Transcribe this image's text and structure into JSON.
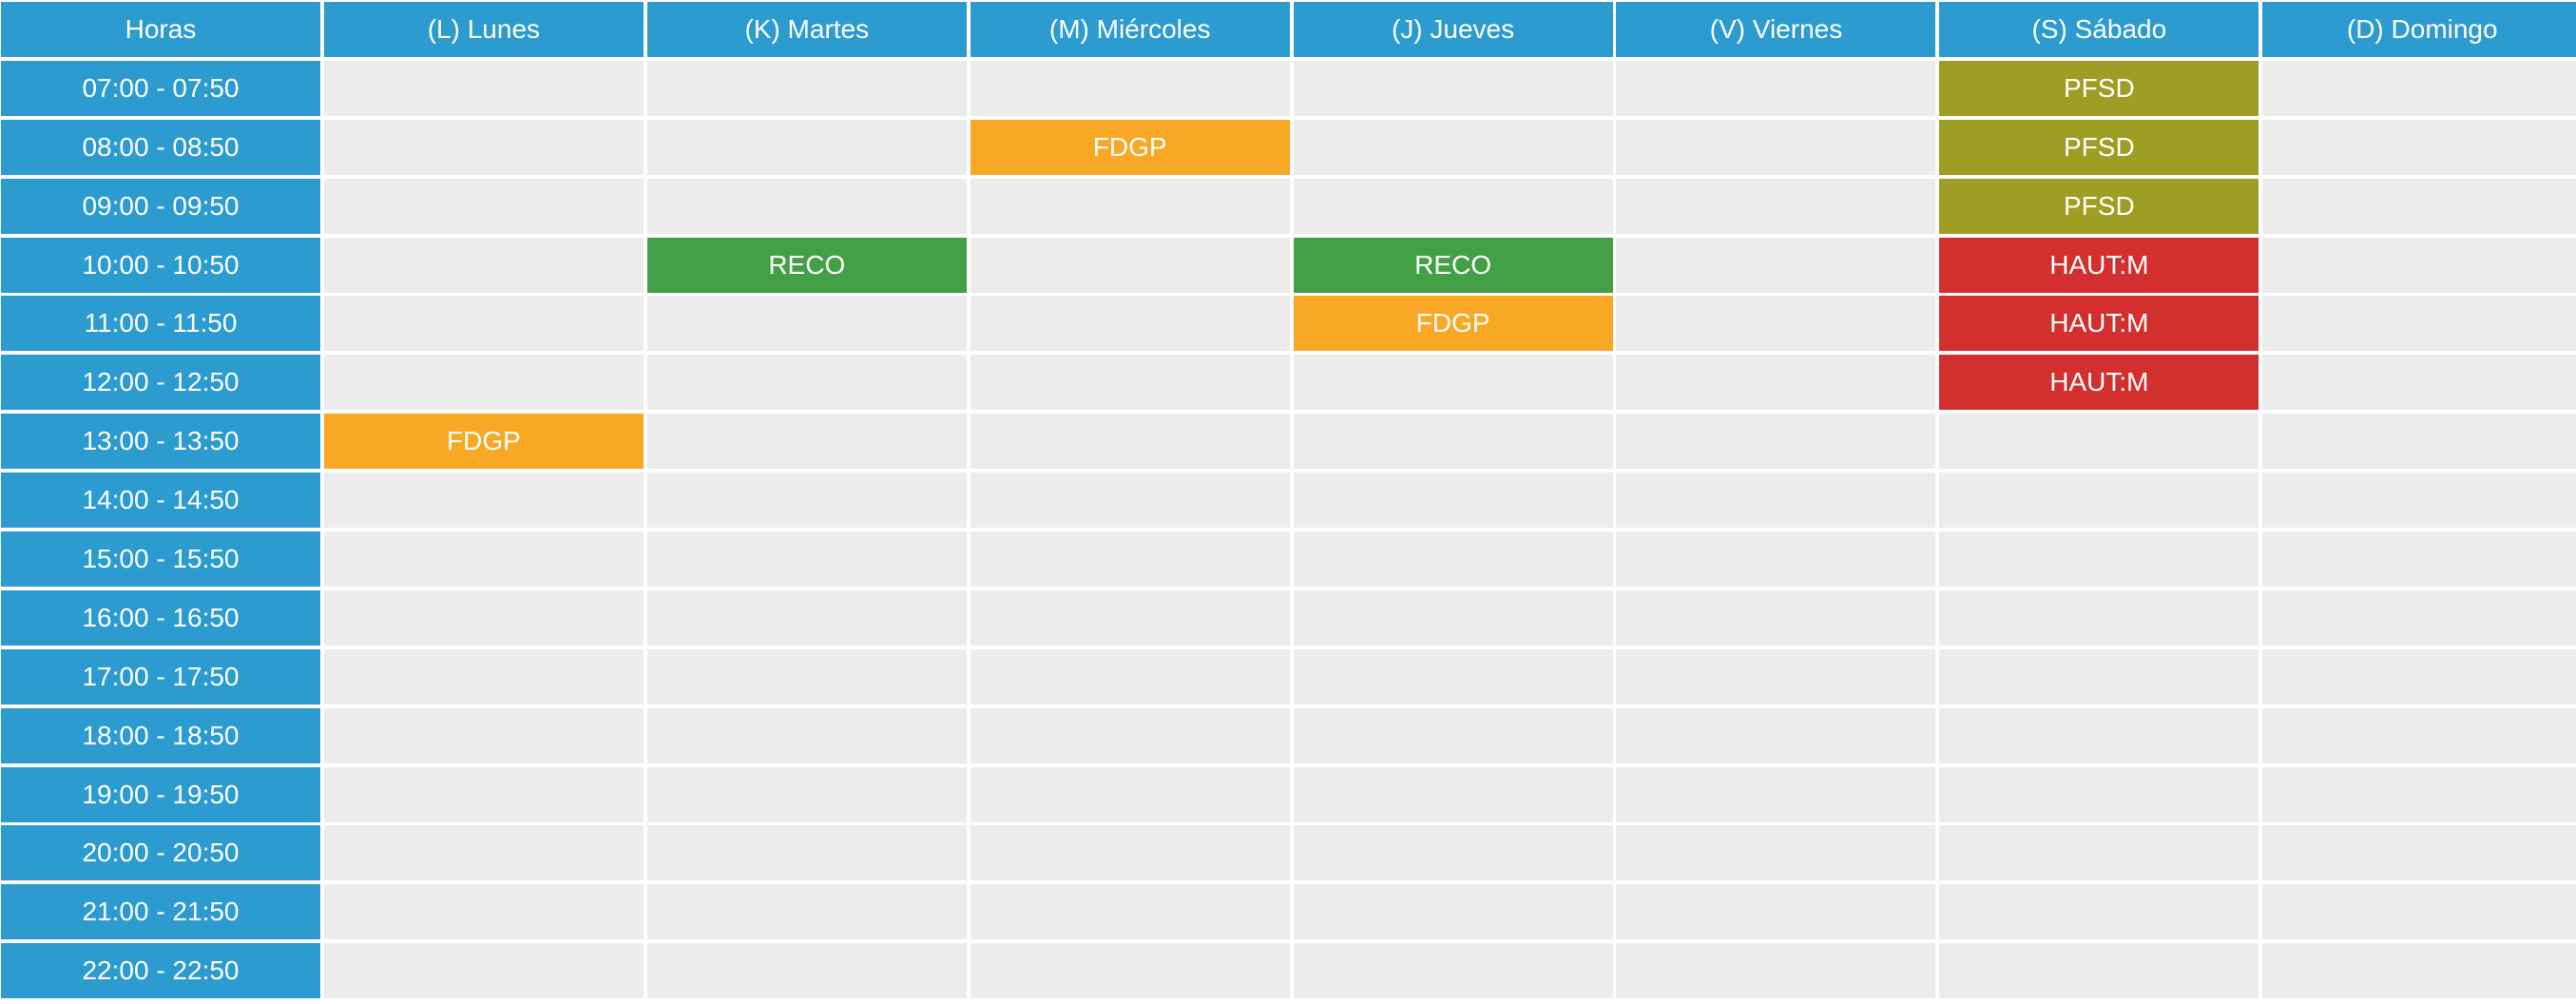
{
  "headers": [
    "Horas",
    "(L) Lunes",
    "(K) Martes",
    "(M) Miércoles",
    "(J) Jueves",
    "(V) Viernes",
    "(S) Sábado",
    "(D) Domingo"
  ],
  "times": [
    "07:00 - 07:50",
    "08:00 - 08:50",
    "09:00 - 09:50",
    "10:00 - 10:50",
    "11:00 - 11:50",
    "12:00 - 12:50",
    "13:00 - 13:50",
    "14:00 - 14:50",
    "15:00 - 15:50",
    "16:00 - 16:50",
    "17:00 - 17:50",
    "18:00 - 18:50",
    "19:00 - 19:50",
    "20:00 - 20:50",
    "21:00 - 21:50",
    "22:00 - 22:50"
  ],
  "colors": {
    "header": "#2b9bd0",
    "empty_cell": "#ececec",
    "FDGP": "#f9a825",
    "RECO": "#43a047",
    "PFSD": "#9e9d24",
    "HAUT:M": "#d32f2f"
  },
  "grid": [
    [
      "",
      "",
      "",
      "",
      "",
      "PFSD",
      ""
    ],
    [
      "",
      "",
      "FDGP",
      "",
      "",
      "PFSD",
      ""
    ],
    [
      "",
      "",
      "",
      "",
      "",
      "PFSD",
      ""
    ],
    [
      "",
      "RECO",
      "",
      "RECO",
      "",
      "HAUT:M",
      ""
    ],
    [
      "",
      "",
      "",
      "FDGP",
      "",
      "HAUT:M",
      ""
    ],
    [
      "",
      "",
      "",
      "",
      "",
      "HAUT:M",
      ""
    ],
    [
      "FDGP",
      "",
      "",
      "",
      "",
      "",
      ""
    ],
    [
      "",
      "",
      "",
      "",
      "",
      "",
      ""
    ],
    [
      "",
      "",
      "",
      "",
      "",
      "",
      ""
    ],
    [
      "",
      "",
      "",
      "",
      "",
      "",
      ""
    ],
    [
      "",
      "",
      "",
      "",
      "",
      "",
      ""
    ],
    [
      "",
      "",
      "",
      "",
      "",
      "",
      ""
    ],
    [
      "",
      "",
      "",
      "",
      "",
      "",
      ""
    ],
    [
      "",
      "",
      "",
      "",
      "",
      "",
      ""
    ],
    [
      "",
      "",
      "",
      "",
      "",
      "",
      ""
    ],
    [
      "",
      "",
      "",
      "",
      "",
      "",
      ""
    ]
  ]
}
